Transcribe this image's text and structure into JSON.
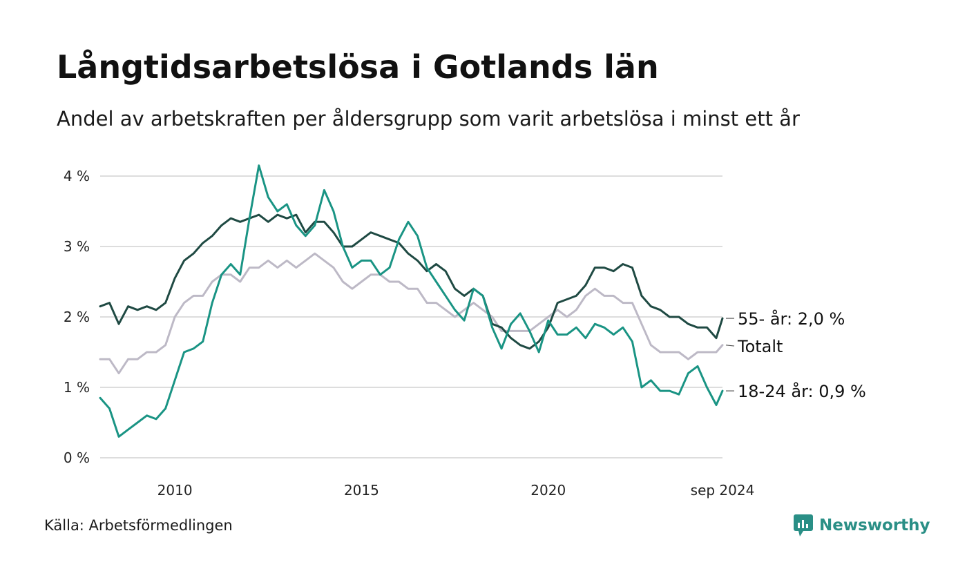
{
  "header": {
    "title": "Långtidsarbetslösa i Gotlands län",
    "subtitle": "Andel av arbetskraften per åldersgrupp som varit arbetslösa i minst ett år"
  },
  "footer": {
    "source": "Källa: Arbetsförmedlingen",
    "brand": "Newsworthy"
  },
  "colors": {
    "s55": "#1f4a43",
    "total": "#bdb9c6",
    "s1824": "#1a9484",
    "grid": "#dddddd",
    "brand": "#2a8f86"
  },
  "chart_data": {
    "type": "line",
    "title": "Långtidsarbetslösa i Gotlands län",
    "subtitle": "Andel av arbetskraften per åldersgrupp som varit arbetslösa i minst ett år",
    "xlabel": "",
    "ylabel": "",
    "x_range": [
      "2008-01",
      "2024-09"
    ],
    "y_range": [
      0,
      4.2
    ],
    "y_ticks": [
      {
        "value": 0,
        "label": "0 %"
      },
      {
        "value": 1,
        "label": "1 %"
      },
      {
        "value": 2,
        "label": "2 %"
      },
      {
        "value": 3,
        "label": "3 %"
      },
      {
        "value": 4,
        "label": "4 %"
      }
    ],
    "x_ticks": [
      {
        "date": "2010-01",
        "label": "2010"
      },
      {
        "date": "2015-01",
        "label": "2015"
      },
      {
        "date": "2020-01",
        "label": "2020"
      },
      {
        "date": "2024-09",
        "label": "sep 2024"
      }
    ],
    "grid": "horizontal",
    "legend": "end-labels-right",
    "series": [
      {
        "name": "Totalt",
        "end_label": "Totalt",
        "color_key": "total",
        "points": [
          [
            "2008-01",
            1.4
          ],
          [
            "2008-04",
            1.4
          ],
          [
            "2008-07",
            1.2
          ],
          [
            "2008-10",
            1.4
          ],
          [
            "2009-01",
            1.4
          ],
          [
            "2009-04",
            1.5
          ],
          [
            "2009-07",
            1.5
          ],
          [
            "2009-10",
            1.6
          ],
          [
            "2010-01",
            2.0
          ],
          [
            "2010-04",
            2.2
          ],
          [
            "2010-07",
            2.3
          ],
          [
            "2010-10",
            2.3
          ],
          [
            "2011-01",
            2.5
          ],
          [
            "2011-04",
            2.6
          ],
          [
            "2011-07",
            2.6
          ],
          [
            "2011-10",
            2.5
          ],
          [
            "2012-01",
            2.7
          ],
          [
            "2012-04",
            2.7
          ],
          [
            "2012-07",
            2.8
          ],
          [
            "2012-10",
            2.7
          ],
          [
            "2013-01",
            2.8
          ],
          [
            "2013-04",
            2.7
          ],
          [
            "2013-07",
            2.8
          ],
          [
            "2013-10",
            2.9
          ],
          [
            "2014-01",
            2.8
          ],
          [
            "2014-04",
            2.7
          ],
          [
            "2014-07",
            2.5
          ],
          [
            "2014-10",
            2.4
          ],
          [
            "2015-01",
            2.5
          ],
          [
            "2015-04",
            2.6
          ],
          [
            "2015-07",
            2.6
          ],
          [
            "2015-10",
            2.5
          ],
          [
            "2016-01",
            2.5
          ],
          [
            "2016-04",
            2.4
          ],
          [
            "2016-07",
            2.4
          ],
          [
            "2016-10",
            2.2
          ],
          [
            "2017-01",
            2.2
          ],
          [
            "2017-04",
            2.1
          ],
          [
            "2017-07",
            2.0
          ],
          [
            "2017-10",
            2.1
          ],
          [
            "2018-01",
            2.2
          ],
          [
            "2018-04",
            2.1
          ],
          [
            "2018-07",
            2.0
          ],
          [
            "2018-10",
            1.8
          ],
          [
            "2019-01",
            1.8
          ],
          [
            "2019-04",
            1.8
          ],
          [
            "2019-07",
            1.8
          ],
          [
            "2019-10",
            1.9
          ],
          [
            "2020-01",
            2.0
          ],
          [
            "2020-04",
            2.1
          ],
          [
            "2020-07",
            2.0
          ],
          [
            "2020-10",
            2.1
          ],
          [
            "2021-01",
            2.3
          ],
          [
            "2021-04",
            2.4
          ],
          [
            "2021-07",
            2.3
          ],
          [
            "2021-10",
            2.3
          ],
          [
            "2022-01",
            2.2
          ],
          [
            "2022-04",
            2.2
          ],
          [
            "2022-07",
            1.9
          ],
          [
            "2022-10",
            1.6
          ],
          [
            "2023-01",
            1.5
          ],
          [
            "2023-04",
            1.5
          ],
          [
            "2023-07",
            1.5
          ],
          [
            "2023-10",
            1.4
          ],
          [
            "2024-01",
            1.5
          ],
          [
            "2024-04",
            1.5
          ],
          [
            "2024-07",
            1.5
          ],
          [
            "2024-09",
            1.6
          ]
        ]
      },
      {
        "name": "55- år",
        "end_label": "55- år: 2,0 %",
        "color_key": "s55",
        "points": [
          [
            "2008-01",
            2.15
          ],
          [
            "2008-04",
            2.2
          ],
          [
            "2008-07",
            1.9
          ],
          [
            "2008-10",
            2.15
          ],
          [
            "2009-01",
            2.1
          ],
          [
            "2009-04",
            2.15
          ],
          [
            "2009-07",
            2.1
          ],
          [
            "2009-10",
            2.2
          ],
          [
            "2010-01",
            2.55
          ],
          [
            "2010-04",
            2.8
          ],
          [
            "2010-07",
            2.9
          ],
          [
            "2010-10",
            3.05
          ],
          [
            "2011-01",
            3.15
          ],
          [
            "2011-04",
            3.3
          ],
          [
            "2011-07",
            3.4
          ],
          [
            "2011-10",
            3.35
          ],
          [
            "2012-01",
            3.4
          ],
          [
            "2012-04",
            3.45
          ],
          [
            "2012-07",
            3.35
          ],
          [
            "2012-10",
            3.45
          ],
          [
            "2013-01",
            3.4
          ],
          [
            "2013-04",
            3.45
          ],
          [
            "2013-07",
            3.2
          ],
          [
            "2013-10",
            3.35
          ],
          [
            "2014-01",
            3.35
          ],
          [
            "2014-04",
            3.2
          ],
          [
            "2014-07",
            3.0
          ],
          [
            "2014-10",
            3.0
          ],
          [
            "2015-01",
            3.1
          ],
          [
            "2015-04",
            3.2
          ],
          [
            "2015-07",
            3.15
          ],
          [
            "2015-10",
            3.1
          ],
          [
            "2016-01",
            3.05
          ],
          [
            "2016-04",
            2.9
          ],
          [
            "2016-07",
            2.8
          ],
          [
            "2016-10",
            2.65
          ],
          [
            "2017-01",
            2.75
          ],
          [
            "2017-04",
            2.65
          ],
          [
            "2017-07",
            2.4
          ],
          [
            "2017-10",
            2.3
          ],
          [
            "2018-01",
            2.4
          ],
          [
            "2018-04",
            2.3
          ],
          [
            "2018-07",
            1.9
          ],
          [
            "2018-10",
            1.85
          ],
          [
            "2019-01",
            1.7
          ],
          [
            "2019-04",
            1.6
          ],
          [
            "2019-07",
            1.55
          ],
          [
            "2019-10",
            1.65
          ],
          [
            "2020-01",
            1.85
          ],
          [
            "2020-04",
            2.2
          ],
          [
            "2020-07",
            2.25
          ],
          [
            "2020-10",
            2.3
          ],
          [
            "2021-01",
            2.45
          ],
          [
            "2021-04",
            2.7
          ],
          [
            "2021-07",
            2.7
          ],
          [
            "2021-10",
            2.65
          ],
          [
            "2022-01",
            2.75
          ],
          [
            "2022-04",
            2.7
          ],
          [
            "2022-07",
            2.3
          ],
          [
            "2022-10",
            2.15
          ],
          [
            "2023-01",
            2.1
          ],
          [
            "2023-04",
            2.0
          ],
          [
            "2023-07",
            2.0
          ],
          [
            "2023-10",
            1.9
          ],
          [
            "2024-01",
            1.85
          ],
          [
            "2024-04",
            1.85
          ],
          [
            "2024-07",
            1.7
          ],
          [
            "2024-09",
            1.98
          ]
        ]
      },
      {
        "name": "18-24 år",
        "end_label": "18-24 år: 0,9 %",
        "color_key": "s1824",
        "points": [
          [
            "2008-01",
            0.85
          ],
          [
            "2008-04",
            0.7
          ],
          [
            "2008-07",
            0.3
          ],
          [
            "2008-10",
            0.4
          ],
          [
            "2009-01",
            0.5
          ],
          [
            "2009-04",
            0.6
          ],
          [
            "2009-07",
            0.55
          ],
          [
            "2009-10",
            0.7
          ],
          [
            "2010-01",
            1.1
          ],
          [
            "2010-04",
            1.5
          ],
          [
            "2010-07",
            1.55
          ],
          [
            "2010-10",
            1.65
          ],
          [
            "2011-01",
            2.2
          ],
          [
            "2011-04",
            2.6
          ],
          [
            "2011-07",
            2.75
          ],
          [
            "2011-10",
            2.6
          ],
          [
            "2012-01",
            3.4
          ],
          [
            "2012-04",
            4.15
          ],
          [
            "2012-07",
            3.7
          ],
          [
            "2012-10",
            3.5
          ],
          [
            "2013-01",
            3.6
          ],
          [
            "2013-04",
            3.3
          ],
          [
            "2013-07",
            3.15
          ],
          [
            "2013-10",
            3.3
          ],
          [
            "2014-01",
            3.8
          ],
          [
            "2014-04",
            3.5
          ],
          [
            "2014-07",
            3.0
          ],
          [
            "2014-10",
            2.7
          ],
          [
            "2015-01",
            2.8
          ],
          [
            "2015-04",
            2.8
          ],
          [
            "2015-07",
            2.6
          ],
          [
            "2015-10",
            2.7
          ],
          [
            "2016-01",
            3.1
          ],
          [
            "2016-04",
            3.35
          ],
          [
            "2016-07",
            3.15
          ],
          [
            "2016-10",
            2.7
          ],
          [
            "2017-01",
            2.5
          ],
          [
            "2017-04",
            2.3
          ],
          [
            "2017-07",
            2.1
          ],
          [
            "2017-10",
            1.95
          ],
          [
            "2018-01",
            2.4
          ],
          [
            "2018-04",
            2.3
          ],
          [
            "2018-07",
            1.85
          ],
          [
            "2018-10",
            1.55
          ],
          [
            "2019-01",
            1.9
          ],
          [
            "2019-04",
            2.05
          ],
          [
            "2019-07",
            1.8
          ],
          [
            "2019-10",
            1.5
          ],
          [
            "2020-01",
            1.95
          ],
          [
            "2020-04",
            1.75
          ],
          [
            "2020-07",
            1.75
          ],
          [
            "2020-10",
            1.85
          ],
          [
            "2021-01",
            1.7
          ],
          [
            "2021-04",
            1.9
          ],
          [
            "2021-07",
            1.85
          ],
          [
            "2021-10",
            1.75
          ],
          [
            "2022-01",
            1.85
          ],
          [
            "2022-04",
            1.65
          ],
          [
            "2022-07",
            1.0
          ],
          [
            "2022-10",
            1.1
          ],
          [
            "2023-01",
            0.95
          ],
          [
            "2023-04",
            0.95
          ],
          [
            "2023-07",
            0.9
          ],
          [
            "2023-10",
            1.2
          ],
          [
            "2024-01",
            1.3
          ],
          [
            "2024-04",
            1.0
          ],
          [
            "2024-07",
            0.75
          ],
          [
            "2024-09",
            0.95
          ]
        ]
      }
    ]
  }
}
